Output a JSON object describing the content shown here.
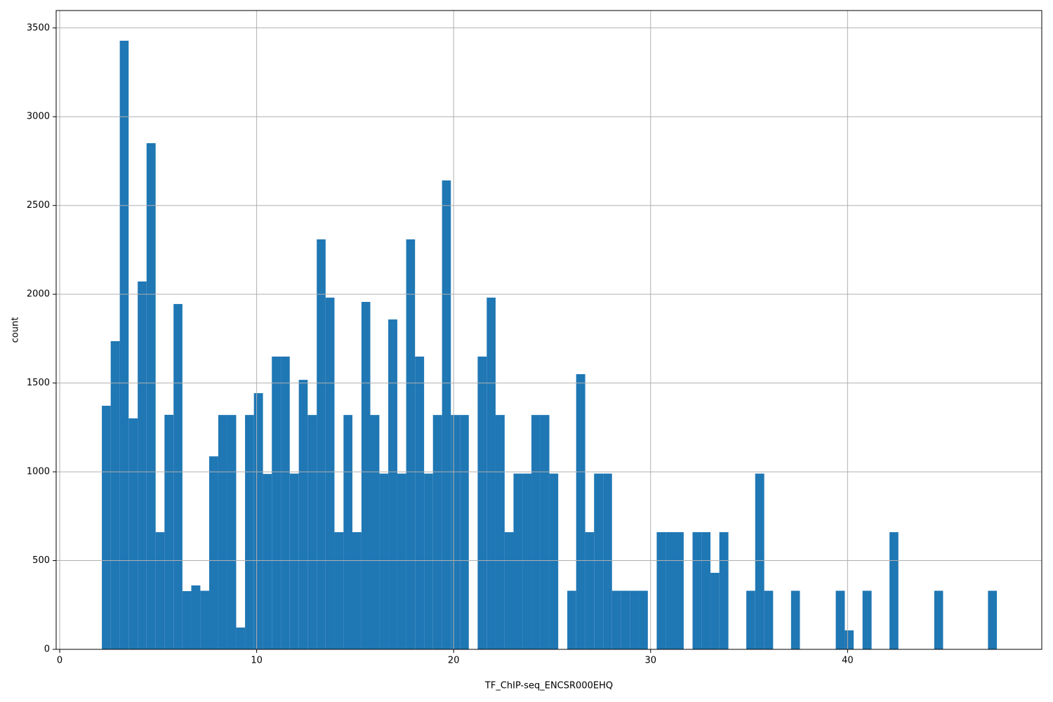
{
  "chart_data": {
    "type": "histogram",
    "xlabel": "TF_ChIP-seq_ENCSR000EHQ",
    "ylabel": "count",
    "bins": [
      2.14,
      2.59,
      3.05,
      3.5,
      3.96,
      4.41,
      4.87,
      5.32,
      5.78,
      6.23,
      6.68,
      7.14,
      7.59,
      8.05,
      8.5,
      8.96,
      9.41,
      9.86,
      10.32,
      10.77,
      11.23,
      11.68,
      12.14,
      12.59,
      13.05,
      13.5,
      13.95,
      14.41,
      14.86,
      15.32,
      15.77,
      16.23,
      16.68,
      17.14,
      17.59,
      18.04,
      18.5,
      18.95,
      19.41,
      19.86,
      20.32,
      20.77,
      21.22,
      21.68,
      22.13,
      22.59,
      23.04,
      23.5,
      23.95,
      24.41,
      24.86,
      25.31,
      25.77,
      26.22,
      26.68,
      27.13,
      27.59,
      28.04,
      28.5,
      28.95,
      29.4,
      29.86,
      30.31,
      30.77,
      31.22,
      31.68,
      32.13,
      32.58,
      33.04,
      33.49,
      33.95,
      34.4,
      34.86,
      35.31,
      35.77,
      36.22,
      36.67,
      37.13,
      37.58,
      38.04,
      38.49,
      38.95,
      39.4,
      39.86,
      40.31,
      40.76,
      41.22,
      41.67,
      42.13,
      42.58,
      43.04,
      43.49,
      43.95,
      44.4,
      44.85,
      45.31,
      45.76,
      46.22,
      46.67,
      47.13,
      47.58
    ],
    "values": [
      1372,
      1736,
      3428,
      1301,
      2072,
      2851,
      660,
      1321,
      1945,
      328,
      360,
      330,
      1087,
      1320,
      1320,
      123,
      1320,
      1443,
      988,
      1649,
      1649,
      990,
      1518,
      1320,
      2309,
      1981,
      660,
      1320,
      660,
      1957,
      1320,
      990,
      1858,
      990,
      2309,
      1649,
      990,
      1320,
      2641,
      1320,
      1320,
      0,
      1649,
      1981,
      1320,
      660,
      990,
      990,
      1320,
      1320,
      990,
      0,
      330,
      1550,
      660,
      990,
      990,
      330,
      330,
      330,
      330,
      0,
      660,
      660,
      660,
      0,
      660,
      660,
      431,
      660,
      0,
      0,
      330,
      990,
      330,
      0,
      0,
      330,
      0,
      0,
      0,
      0,
      330,
      107,
      0,
      330,
      0,
      0,
      660,
      0,
      0,
      0,
      0,
      330,
      0,
      0,
      0,
      0,
      0,
      330
    ],
    "color": "#1f77b4",
    "xlim": [
      -0.18,
      49.86
    ],
    "ylim": [
      0,
      3598
    ],
    "xticks": [
      0,
      10,
      20,
      30,
      40
    ],
    "yticks": [
      0,
      500,
      1000,
      1500,
      2000,
      2500,
      3000,
      3500
    ],
    "grid": true
  }
}
